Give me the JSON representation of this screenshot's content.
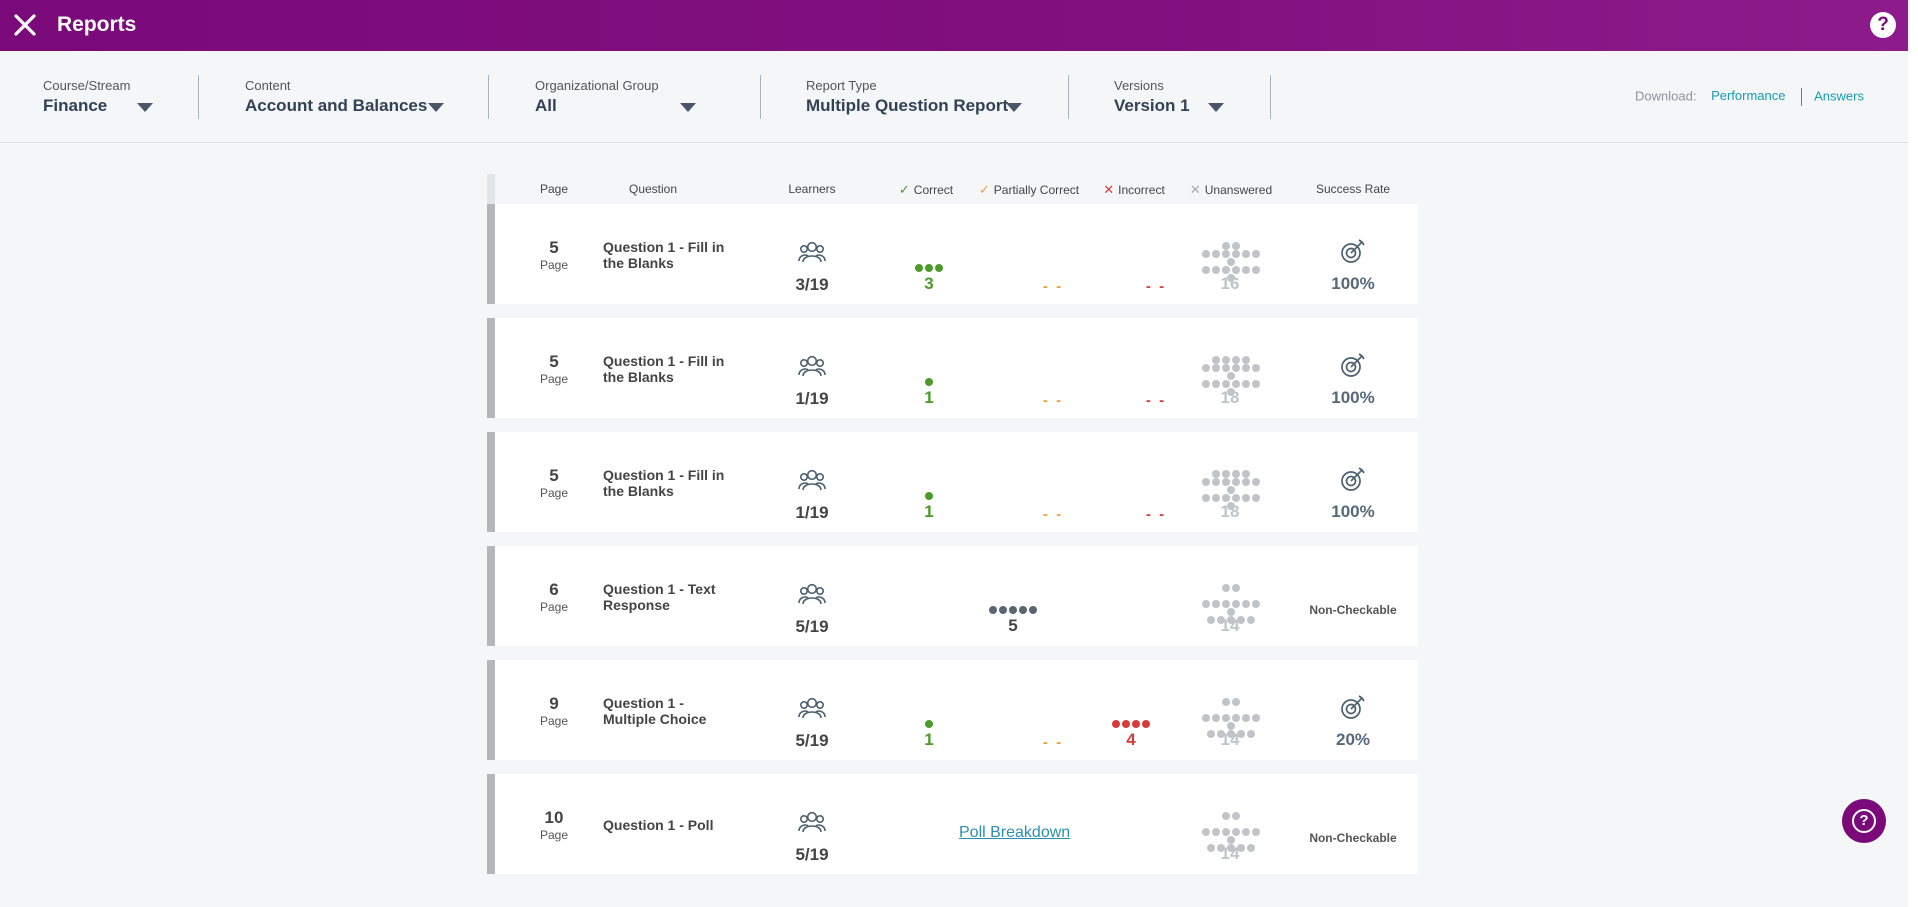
{
  "header": {
    "title": "Reports",
    "close_icon": "close-icon",
    "help_label": "?"
  },
  "filters": [
    {
      "label": "Course/Stream",
      "value": "Finance"
    },
    {
      "label": "Content",
      "value": "Account and Balances"
    },
    {
      "label": "Organizational Group",
      "value": "All"
    },
    {
      "label": "Report Type",
      "value": "Multiple Question Report"
    },
    {
      "label": "Versions",
      "value": "Version 1"
    }
  ],
  "download": {
    "label": "Download:",
    "performance": "Performance",
    "answers": "Answers"
  },
  "columns": {
    "page": "Page",
    "question": "Question",
    "learners": "Learners",
    "correct": "Correct",
    "partial": "Partially Correct",
    "incorrect": "Incorrect",
    "unanswered": "Unanswered",
    "success": "Success Rate"
  },
  "colors": {
    "brand": "#7a0a7a",
    "correct": "#4c9a2a",
    "partial": "#f0a038",
    "incorrect": "#d83b3b",
    "unanswered": "#c0c4c8",
    "neutral": "#5b6470"
  },
  "rows": [
    {
      "page": "5",
      "page_label": "Page",
      "question": "Question 1 - Fill in the Blanks",
      "learners": "3/19",
      "correct": "3",
      "partial": "- -",
      "incorrect": "- -",
      "unanswered": "16",
      "success": "100%"
    },
    {
      "page": "5",
      "page_label": "Page",
      "question": "Question 1 - Fill in the Blanks",
      "learners": "1/19",
      "correct": "1",
      "partial": "- -",
      "incorrect": "- -",
      "unanswered": "18",
      "success": "100%"
    },
    {
      "page": "5",
      "page_label": "Page",
      "question": "Question 1 - Fill in the Blanks",
      "learners": "1/19",
      "correct": "1",
      "partial": "- -",
      "incorrect": "- -",
      "unanswered": "18",
      "success": "100%"
    },
    {
      "page": "6",
      "page_label": "Page",
      "question": "Question 1 - Text Response",
      "learners": "5/19",
      "neutral": "5",
      "unanswered": "14",
      "success": "Non-Checkable"
    },
    {
      "page": "9",
      "page_label": "Page",
      "question": "Question 1 - Multiple Choice",
      "learners": "5/19",
      "correct": "1",
      "partial": "- -",
      "incorrect": "4",
      "unanswered": "14",
      "success": "20%"
    },
    {
      "page": "10",
      "page_label": "Page",
      "question": "Question 1 - Poll",
      "learners": "5/19",
      "poll_link": "Poll Breakdown",
      "unanswered": "14",
      "success": "Non-Checkable"
    }
  ],
  "fab_label": "?"
}
